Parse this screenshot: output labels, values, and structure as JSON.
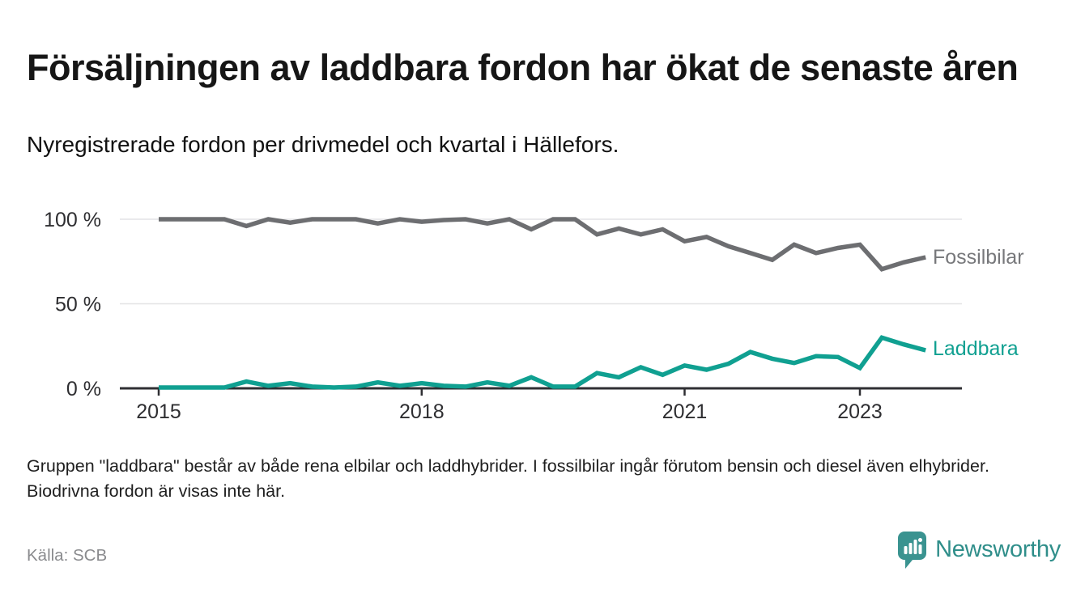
{
  "header": {
    "title": "Försäljningen av laddbara fordon har ökat de senaste åren",
    "subtitle": "Nyregistrerade fordon per drivmedel och kvartal i Hällefors."
  },
  "chart_data": {
    "type": "line",
    "title": "Nyregistrerade fordon per drivmedel och kvartal i Hällefors",
    "unit": "%",
    "categories": [
      "2015Q1",
      "2015Q2",
      "2015Q3",
      "2015Q4",
      "2016Q1",
      "2016Q2",
      "2016Q3",
      "2016Q4",
      "2017Q1",
      "2017Q2",
      "2017Q3",
      "2017Q4",
      "2018Q1",
      "2018Q2",
      "2018Q3",
      "2018Q4",
      "2019Q1",
      "2019Q2",
      "2019Q3",
      "2019Q4",
      "2020Q1",
      "2020Q2",
      "2020Q3",
      "2020Q4",
      "2021Q1",
      "2021Q2",
      "2021Q3",
      "2021Q4",
      "2022Q1",
      "2022Q2",
      "2022Q3",
      "2022Q4",
      "2023Q1",
      "2023Q2",
      "2023Q3",
      "2023Q4"
    ],
    "series": [
      {
        "name": "Fossilbilar",
        "color": "#6d6e71",
        "label_color": "#77787b",
        "values": [
          100,
          100,
          100,
          100,
          96,
          100,
          98,
          100,
          100,
          100,
          97.5,
          100,
          98.5,
          99.5,
          100,
          97.5,
          100,
          94,
          100,
          100,
          91,
          94.5,
          91,
          94,
          87,
          89.5,
          84,
          80,
          76,
          85,
          80,
          83,
          85,
          70.5,
          74.5,
          77.5
        ]
      },
      {
        "name": "Laddbara",
        "color": "#10a091",
        "label_color": "#10a091",
        "values": [
          0.5,
          0.5,
          0.5,
          0.5,
          4,
          1.5,
          3,
          1,
          0.5,
          1,
          3.5,
          1.5,
          3,
          1.5,
          1,
          3.5,
          1.5,
          6.5,
          1,
          1,
          9,
          6.5,
          12.5,
          8,
          13.5,
          11,
          14.5,
          21.5,
          17.5,
          15,
          19,
          18.5,
          12,
          30,
          26,
          22.5
        ]
      }
    ],
    "ylim": [
      0,
      100
    ],
    "yticks": [
      {
        "value": 100,
        "label": "100 %"
      },
      {
        "value": 50,
        "label": "50 %"
      },
      {
        "value": 0,
        "label": "0 %"
      }
    ],
    "xticks": [
      {
        "index": 0,
        "label": "2015"
      },
      {
        "index": 12,
        "label": "2018"
      },
      {
        "index": 24,
        "label": "2021"
      },
      {
        "index": 32,
        "label": "2023"
      }
    ],
    "grid": "horizontal",
    "legend_position": "end-of-line"
  },
  "footer": {
    "note": "Gruppen \"laddbara\" består av både rena elbilar och laddhybrider. I fossilbilar ingår förutom bensin och diesel även elhybrider. Biodrivna fordon är visas inte här.",
    "source": "Källa: SCB",
    "logo_text": "Newsworthy",
    "brand_color": "#2f8e8a"
  }
}
